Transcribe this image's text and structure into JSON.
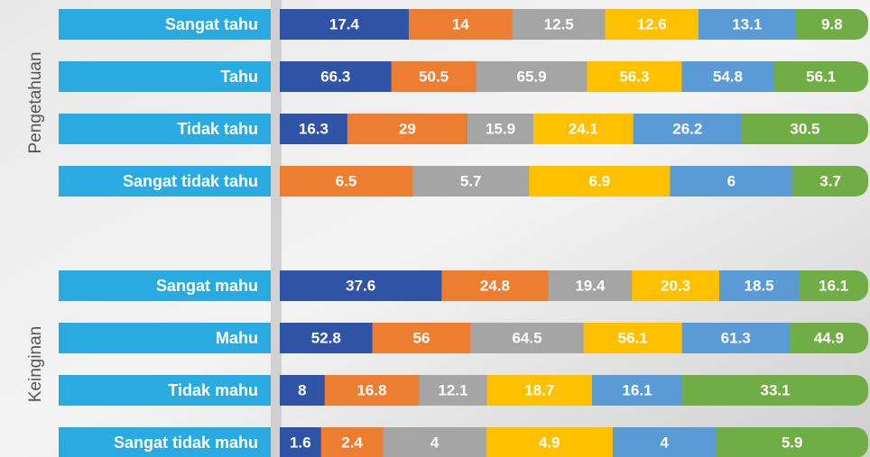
{
  "chart_data": {
    "type": "bar",
    "groups": [
      "Pengetahuan",
      "Keinginan"
    ],
    "categories": [
      "Sangat tahu",
      "Tahu",
      "Tidak tahu",
      "Sangat tidak tahu",
      "Sangat mahu",
      "Mahu",
      "Tidak mahu",
      "Sangat tidak mahu"
    ],
    "category_color": "#29abe2",
    "series": [
      {
        "color": "#2f53a5",
        "values": [
          17.4,
          66.3,
          16.3,
          null,
          37.6,
          52.8,
          8,
          1.6
        ]
      },
      {
        "color": "#ed7d31",
        "values": [
          14,
          50.5,
          29,
          6.5,
          24.8,
          56,
          16.8,
          2.4
        ]
      },
      {
        "color": "#a5a5a5",
        "values": [
          12.5,
          65.9,
          15.9,
          5.7,
          19.4,
          64.5,
          12.1,
          4
        ]
      },
      {
        "color": "#ffc000",
        "values": [
          12.6,
          56.3,
          24.1,
          6.9,
          20.3,
          56.1,
          18.7,
          4.9
        ]
      },
      {
        "color": "#5b9bd5",
        "values": [
          13.1,
          54.8,
          26.2,
          6,
          18.5,
          61.3,
          16.1,
          4
        ]
      },
      {
        "color": "#70ad47",
        "values": [
          9.8,
          56.1,
          30.5,
          3.7,
          16.1,
          44.9,
          33.1,
          5.9
        ]
      }
    ]
  }
}
